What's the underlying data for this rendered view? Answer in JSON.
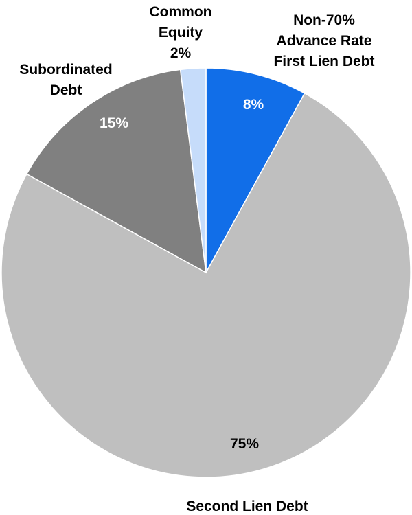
{
  "chart_data": {
    "type": "pie",
    "title": "",
    "slices": [
      {
        "label_lines": [
          "Non-70%",
          "Advance Rate",
          "First Lien Debt"
        ],
        "value": 8,
        "value_label": "8%",
        "color": "#116EE8",
        "value_label_color": "#ffffff"
      },
      {
        "label_lines": [
          "Second Lien Debt"
        ],
        "value": 75,
        "value_label": "75%",
        "color": "#BFBFBF",
        "value_label_color": "#000000"
      },
      {
        "label_lines": [
          "Subordinated",
          "Debt"
        ],
        "value": 15,
        "value_label": "15%",
        "color": "#808080",
        "value_label_color": "#ffffff"
      },
      {
        "label_lines": [
          "Common",
          "Equity"
        ],
        "value": 2,
        "value_label": "2%",
        "color": "#C6DCFA",
        "value_label_color": "#000000"
      }
    ]
  }
}
